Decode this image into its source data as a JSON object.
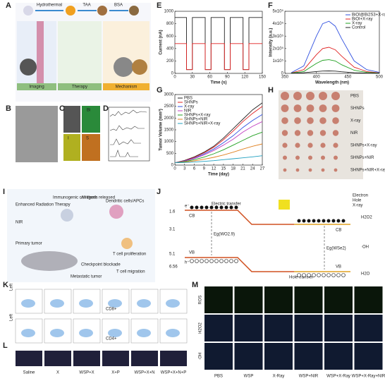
{
  "figure": {
    "panel_labels": [
      "A",
      "B",
      "C",
      "D",
      "E",
      "F",
      "G",
      "H",
      "I",
      "J",
      "K",
      "L",
      "M"
    ],
    "a": {
      "steps": [
        "Hydrothermal",
        "TAA",
        "BSA"
      ],
      "sections": [
        "Imaging",
        "Therapy",
        "Mechanism"
      ]
    },
    "c": {
      "elements": [
        "Bi",
        "I",
        "S"
      ]
    },
    "h": {
      "groups": [
        "PBS",
        "SHNPs",
        "X-ray",
        "NIR",
        "SHNPs+X-ray",
        "SHNPs+NIR",
        "SHNPs+NIR+X-ray"
      ]
    },
    "i": {
      "labels": [
        "Enhanced Radiation Therapy",
        "NIR",
        "Primary tumor",
        "Metastatic tumor",
        "Checkpoint blockade",
        "T cell migration",
        "T cell proliferation",
        "Antigens released",
        "Immunogenic cell death",
        "Dendritic cells/APCs"
      ]
    },
    "j": {
      "electric_transfer": "Electric transfer",
      "hole_transfer": "Hole transfer",
      "cb": "CB",
      "vb": "VB",
      "eg_left": "Eg(WO2.9)",
      "eg_right": "Eg(WSe2)",
      "h2o2": "H2O2",
      "oh": "·OH",
      "h2o": "H2O",
      "energies": [
        "1.6",
        "3.1",
        "5.1",
        "6.56"
      ],
      "legend": [
        "Electron",
        "Hole",
        "X-ray"
      ],
      "e": "e⁻",
      "h": "h⁺"
    },
    "k": {
      "row_labels": [
        "CD8+",
        "CD4+"
      ],
      "axis": "Left"
    },
    "l": {
      "groups": [
        "Saline",
        "X",
        "WSP+X",
        "X+P",
        "WSP+X+N",
        "WSP+X+N+P"
      ]
    },
    "m": {
      "rows": [
        "ROS",
        "H2O2",
        "·OH"
      ],
      "groups": [
        "PBS",
        "WSP",
        "X-Ray",
        "WSP+NIR",
        "WSP+X-Ray",
        "WSP+X-Ray+NIR"
      ]
    }
  },
  "chart_data": [
    {
      "type": "line",
      "xlabel": "Time (s)",
      "ylabel": "Current (nA)",
      "xlim": [
        0,
        150
      ],
      "ylim": [
        0,
        1000
      ],
      "xticks": [
        0,
        30,
        60,
        90,
        120,
        150
      ],
      "yticks": [
        0,
        200,
        400,
        600,
        800,
        1000
      ],
      "x": [
        0,
        20,
        20,
        30,
        30,
        52,
        52,
        62,
        62,
        85,
        85,
        95,
        95,
        117,
        117,
        127,
        127,
        150
      ],
      "series": [
        {
          "color": "#222222",
          "values": [
            900,
            900,
            60,
            60,
            900,
            900,
            60,
            60,
            900,
            900,
            60,
            60,
            900,
            900,
            60,
            60,
            900,
            900
          ]
        },
        {
          "color": "#e02020",
          "values": [
            480,
            480,
            60,
            60,
            480,
            480,
            60,
            60,
            480,
            480,
            60,
            60,
            480,
            480,
            60,
            60,
            480,
            480
          ]
        }
      ]
    },
    {
      "type": "line",
      "xlabel": "Wavelength (nm)",
      "ylabel": "Intensity (a.u.)",
      "xlim": [
        350,
        500
      ],
      "ylim": [
        0,
        500000
      ],
      "xticks": [
        350,
        400,
        450,
        500
      ],
      "yticks": [
        0,
        {
          "value": 100000,
          "label": "1x10⁵"
        },
        {
          "value": 200000,
          "label": "2x10⁵"
        },
        {
          "value": 300000,
          "label": "3x10⁵"
        },
        {
          "value": 400000,
          "label": "4x10⁵"
        },
        {
          "value": 500000,
          "label": "5x10⁵"
        }
      ],
      "x": [
        360,
        380,
        400,
        410,
        420,
        430,
        440,
        460,
        480,
        500
      ],
      "series": [
        {
          "name": "BiOI@Bi2S3+X-ray",
          "color": "#3050e0",
          "values": [
            5000,
            60000,
            300000,
            400000,
            420000,
            380000,
            280000,
            100000,
            30000,
            8000
          ]
        },
        {
          "name": "BiOI+X-ray",
          "color": "#e02020",
          "values": [
            3000,
            30000,
            150000,
            200000,
            210000,
            190000,
            140000,
            50000,
            15000,
            4000
          ]
        },
        {
          "name": "X-ray",
          "color": "#20a020",
          "values": [
            2000,
            15000,
            80000,
            105000,
            110000,
            100000,
            70000,
            25000,
            8000,
            2000
          ]
        },
        {
          "name": "Control",
          "color": "#222222",
          "values": [
            1000,
            5000,
            15000,
            19000,
            20000,
            18000,
            13000,
            5000,
            2000,
            1000
          ]
        }
      ]
    },
    {
      "type": "line",
      "xlabel": "Time (day)",
      "ylabel": "Tumor Volume (mm³)",
      "xlim": [
        0,
        27
      ],
      "ylim": [
        0,
        3000
      ],
      "xticks": [
        0,
        3,
        6,
        9,
        12,
        15,
        18,
        21,
        24,
        27
      ],
      "yticks": [
        0,
        500,
        1000,
        1500,
        2000,
        2500,
        3000
      ],
      "x": [
        0,
        3,
        6,
        9,
        12,
        15,
        18,
        21,
        24,
        27
      ],
      "series": [
        {
          "name": "PBS",
          "color": "#222222",
          "values": [
            100,
            200,
            350,
            550,
            800,
            1150,
            1550,
            1950,
            2350,
            2650
          ]
        },
        {
          "name": "SHNPs",
          "color": "#e02020",
          "values": [
            100,
            190,
            330,
            520,
            760,
            1080,
            1450,
            1850,
            2200,
            2500
          ]
        },
        {
          "name": "X-ray",
          "color": "#3050e0",
          "values": [
            100,
            180,
            300,
            470,
            680,
            950,
            1250,
            1600,
            1900,
            2150
          ]
        },
        {
          "name": "NIR",
          "color": "#c040c0",
          "values": [
            100,
            170,
            280,
            430,
            620,
            850,
            1100,
            1400,
            1650,
            1850
          ]
        },
        {
          "name": "SHNPs+X-ray",
          "color": "#20a020",
          "values": [
            100,
            150,
            230,
            340,
            480,
            650,
            850,
            1050,
            1250,
            1400
          ]
        },
        {
          "name": "SHNPs+NIR",
          "color": "#e08020",
          "values": [
            100,
            130,
            180,
            250,
            330,
            430,
            550,
            680,
            800,
            900
          ]
        },
        {
          "name": "SHNPs+NIR+X-ray",
          "color": "#20a0c0",
          "values": [
            100,
            110,
            130,
            160,
            190,
            230,
            270,
            310,
            350,
            400
          ]
        }
      ]
    }
  ]
}
